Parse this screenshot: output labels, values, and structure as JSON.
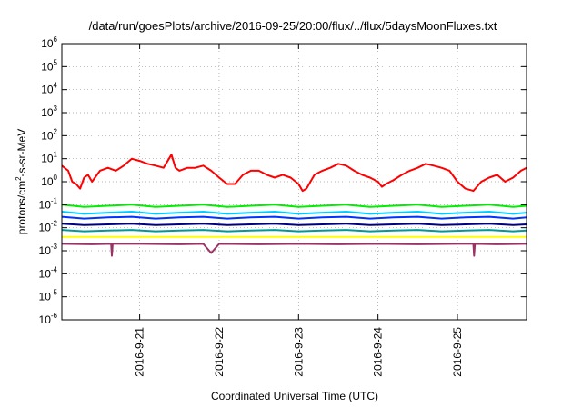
{
  "chart_data": {
    "type": "line",
    "title": "/data/run/goesPlots/archive/2016-09-25/20:00/flux/../flux/5daysMoonFluxes.txt",
    "xlabel": "Coordinated Universal Time (UTC)",
    "ylabel_parts": {
      "pre": "protons/cm",
      "sup": "2",
      "post": "-s-sr-MeV"
    },
    "yscale": "log",
    "ylim": [
      1e-06,
      1000000.0
    ],
    "y_ticks": [
      {
        "base": "10",
        "exp": "-6"
      },
      {
        "base": "10",
        "exp": "-5"
      },
      {
        "base": "10",
        "exp": "-4"
      },
      {
        "base": "10",
        "exp": "-3"
      },
      {
        "base": "10",
        "exp": "-2"
      },
      {
        "base": "10",
        "exp": "-1"
      },
      {
        "base": "10",
        "exp": "0"
      },
      {
        "base": "10",
        "exp": "1"
      },
      {
        "base": "10",
        "exp": "2"
      },
      {
        "base": "10",
        "exp": "3"
      },
      {
        "base": "10",
        "exp": "4"
      },
      {
        "base": "10",
        "exp": "5"
      },
      {
        "base": "10",
        "exp": "6"
      }
    ],
    "x_ticks": [
      "2016-9-21",
      "2016-9-22",
      "2016-9-23",
      "2016-9-24",
      "2016-9-25"
    ],
    "xlim_days": [
      -0.98,
      4.87
    ],
    "grid": true,
    "legend": "none",
    "series": [
      {
        "color": "#ff0000",
        "x": [
          -0.98,
          -0.9,
          -0.85,
          -0.8,
          -0.75,
          -0.7,
          -0.65,
          -0.6,
          -0.5,
          -0.4,
          -0.3,
          -0.2,
          -0.1,
          0,
          0.1,
          0.2,
          0.3,
          0.4,
          0.45,
          0.5,
          0.6,
          0.7,
          0.8,
          0.9,
          1.0,
          1.1,
          1.2,
          1.3,
          1.4,
          1.5,
          1.6,
          1.7,
          1.8,
          1.9,
          2.0,
          2.05,
          2.1,
          2.15,
          2.2,
          2.3,
          2.4,
          2.5,
          2.6,
          2.7,
          2.8,
          2.9,
          3.0,
          3.05,
          3.1,
          3.2,
          3.3,
          3.4,
          3.5,
          3.6,
          3.7,
          3.8,
          3.9,
          4.0,
          4.1,
          4.2,
          4.3,
          4.4,
          4.5,
          4.6,
          4.7,
          4.8,
          4.87
        ],
        "y": [
          5,
          3,
          1,
          0.8,
          0.5,
          1.5,
          2,
          1,
          3,
          4,
          3,
          5,
          10,
          8,
          6,
          5,
          4,
          15,
          4,
          3,
          4,
          4,
          5,
          3,
          1.5,
          0.8,
          0.8,
          2,
          3,
          3,
          2,
          1.5,
          2,
          1.5,
          0.8,
          0.4,
          0.5,
          1,
          2,
          3,
          4,
          6,
          5,
          3,
          2,
          1.5,
          1,
          0.6,
          0.8,
          1.2,
          2,
          3,
          4,
          6,
          5,
          4,
          3,
          1,
          0.5,
          0.4,
          1,
          1.5,
          2,
          1,
          1.5,
          3,
          4
        ]
      },
      {
        "color": "#00ee00",
        "x": [
          -0.98,
          -0.7,
          -0.4,
          -0.1,
          0.2,
          0.5,
          0.8,
          1.1,
          1.4,
          1.7,
          2.0,
          2.3,
          2.6,
          2.9,
          3.2,
          3.5,
          3.8,
          4.1,
          4.4,
          4.7,
          4.87
        ],
        "y": [
          0.1,
          0.08,
          0.09,
          0.1,
          0.08,
          0.09,
          0.1,
          0.08,
          0.09,
          0.1,
          0.08,
          0.09,
          0.1,
          0.08,
          0.09,
          0.1,
          0.08,
          0.09,
          0.1,
          0.08,
          0.09
        ]
      },
      {
        "color": "#00ccff",
        "x": [
          -0.98,
          -0.7,
          -0.4,
          -0.1,
          0.2,
          0.5,
          0.8,
          1.1,
          1.4,
          1.7,
          2.0,
          2.3,
          2.6,
          2.9,
          3.2,
          3.5,
          3.8,
          4.1,
          4.4,
          4.7,
          4.87
        ],
        "y": [
          0.05,
          0.04,
          0.045,
          0.05,
          0.04,
          0.045,
          0.05,
          0.04,
          0.045,
          0.05,
          0.04,
          0.045,
          0.05,
          0.04,
          0.045,
          0.05,
          0.04,
          0.045,
          0.05,
          0.04,
          0.045
        ]
      },
      {
        "color": "#0033ff",
        "x": [
          -0.98,
          -0.7,
          -0.4,
          -0.1,
          0.2,
          0.5,
          0.8,
          1.1,
          1.4,
          1.7,
          2.0,
          2.3,
          2.6,
          2.9,
          3.2,
          3.5,
          3.8,
          4.1,
          4.4,
          4.7,
          4.87
        ],
        "y": [
          0.03,
          0.025,
          0.028,
          0.03,
          0.025,
          0.028,
          0.03,
          0.025,
          0.028,
          0.03,
          0.025,
          0.028,
          0.03,
          0.025,
          0.028,
          0.03,
          0.025,
          0.028,
          0.03,
          0.025,
          0.028
        ]
      },
      {
        "color": "#000080",
        "x": [
          -0.98,
          -0.7,
          -0.4,
          -0.1,
          0.2,
          0.5,
          0.8,
          1.1,
          1.4,
          1.7,
          2.0,
          2.3,
          2.6,
          2.9,
          3.2,
          3.5,
          3.8,
          4.1,
          4.4,
          4.7,
          4.87
        ],
        "y": [
          0.015,
          0.013,
          0.014,
          0.015,
          0.013,
          0.014,
          0.015,
          0.013,
          0.014,
          0.015,
          0.013,
          0.014,
          0.015,
          0.013,
          0.014,
          0.015,
          0.013,
          0.014,
          0.015,
          0.013,
          0.014
        ]
      },
      {
        "color": "#009999",
        "x": [
          -0.98,
          -0.7,
          -0.4,
          -0.1,
          0.2,
          0.5,
          0.8,
          1.1,
          1.4,
          1.7,
          2.0,
          2.3,
          2.6,
          2.9,
          3.2,
          3.5,
          3.8,
          4.1,
          4.4,
          4.7,
          4.87
        ],
        "y": [
          0.008,
          0.007,
          0.0075,
          0.008,
          0.007,
          0.0075,
          0.008,
          0.007,
          0.0075,
          0.008,
          0.007,
          0.0075,
          0.008,
          0.007,
          0.0075,
          0.008,
          0.007,
          0.0075,
          0.008,
          0.007,
          0.0075
        ]
      },
      {
        "color": "#ffff00",
        "x": [
          -0.98,
          -0.5,
          0,
          0.5,
          1.0,
          1.5,
          2.0,
          2.5,
          3.0,
          3.5,
          4.0,
          4.5,
          4.87
        ],
        "y": [
          0.004,
          0.004,
          0.004,
          0.004,
          0.004,
          0.004,
          0.004,
          0.004,
          0.004,
          0.004,
          0.004,
          0.004,
          0.004
        ]
      },
      {
        "color": "#993366",
        "x": [
          -0.98,
          -0.6,
          -0.36,
          -0.35,
          -0.34,
          0,
          0.5,
          0.8,
          0.9,
          1.0,
          1.5,
          2.0,
          2.5,
          3.0,
          3.5,
          4.0,
          4.2,
          4.21,
          4.22,
          4.5,
          4.87
        ],
        "y": [
          0.002,
          0.0019,
          0.002,
          0.0006,
          0.002,
          0.002,
          0.0019,
          0.002,
          0.0008,
          0.002,
          0.0019,
          0.002,
          0.0019,
          0.002,
          0.0019,
          0.002,
          0.002,
          0.0006,
          0.002,
          0.0019,
          0.002
        ]
      }
    ]
  }
}
